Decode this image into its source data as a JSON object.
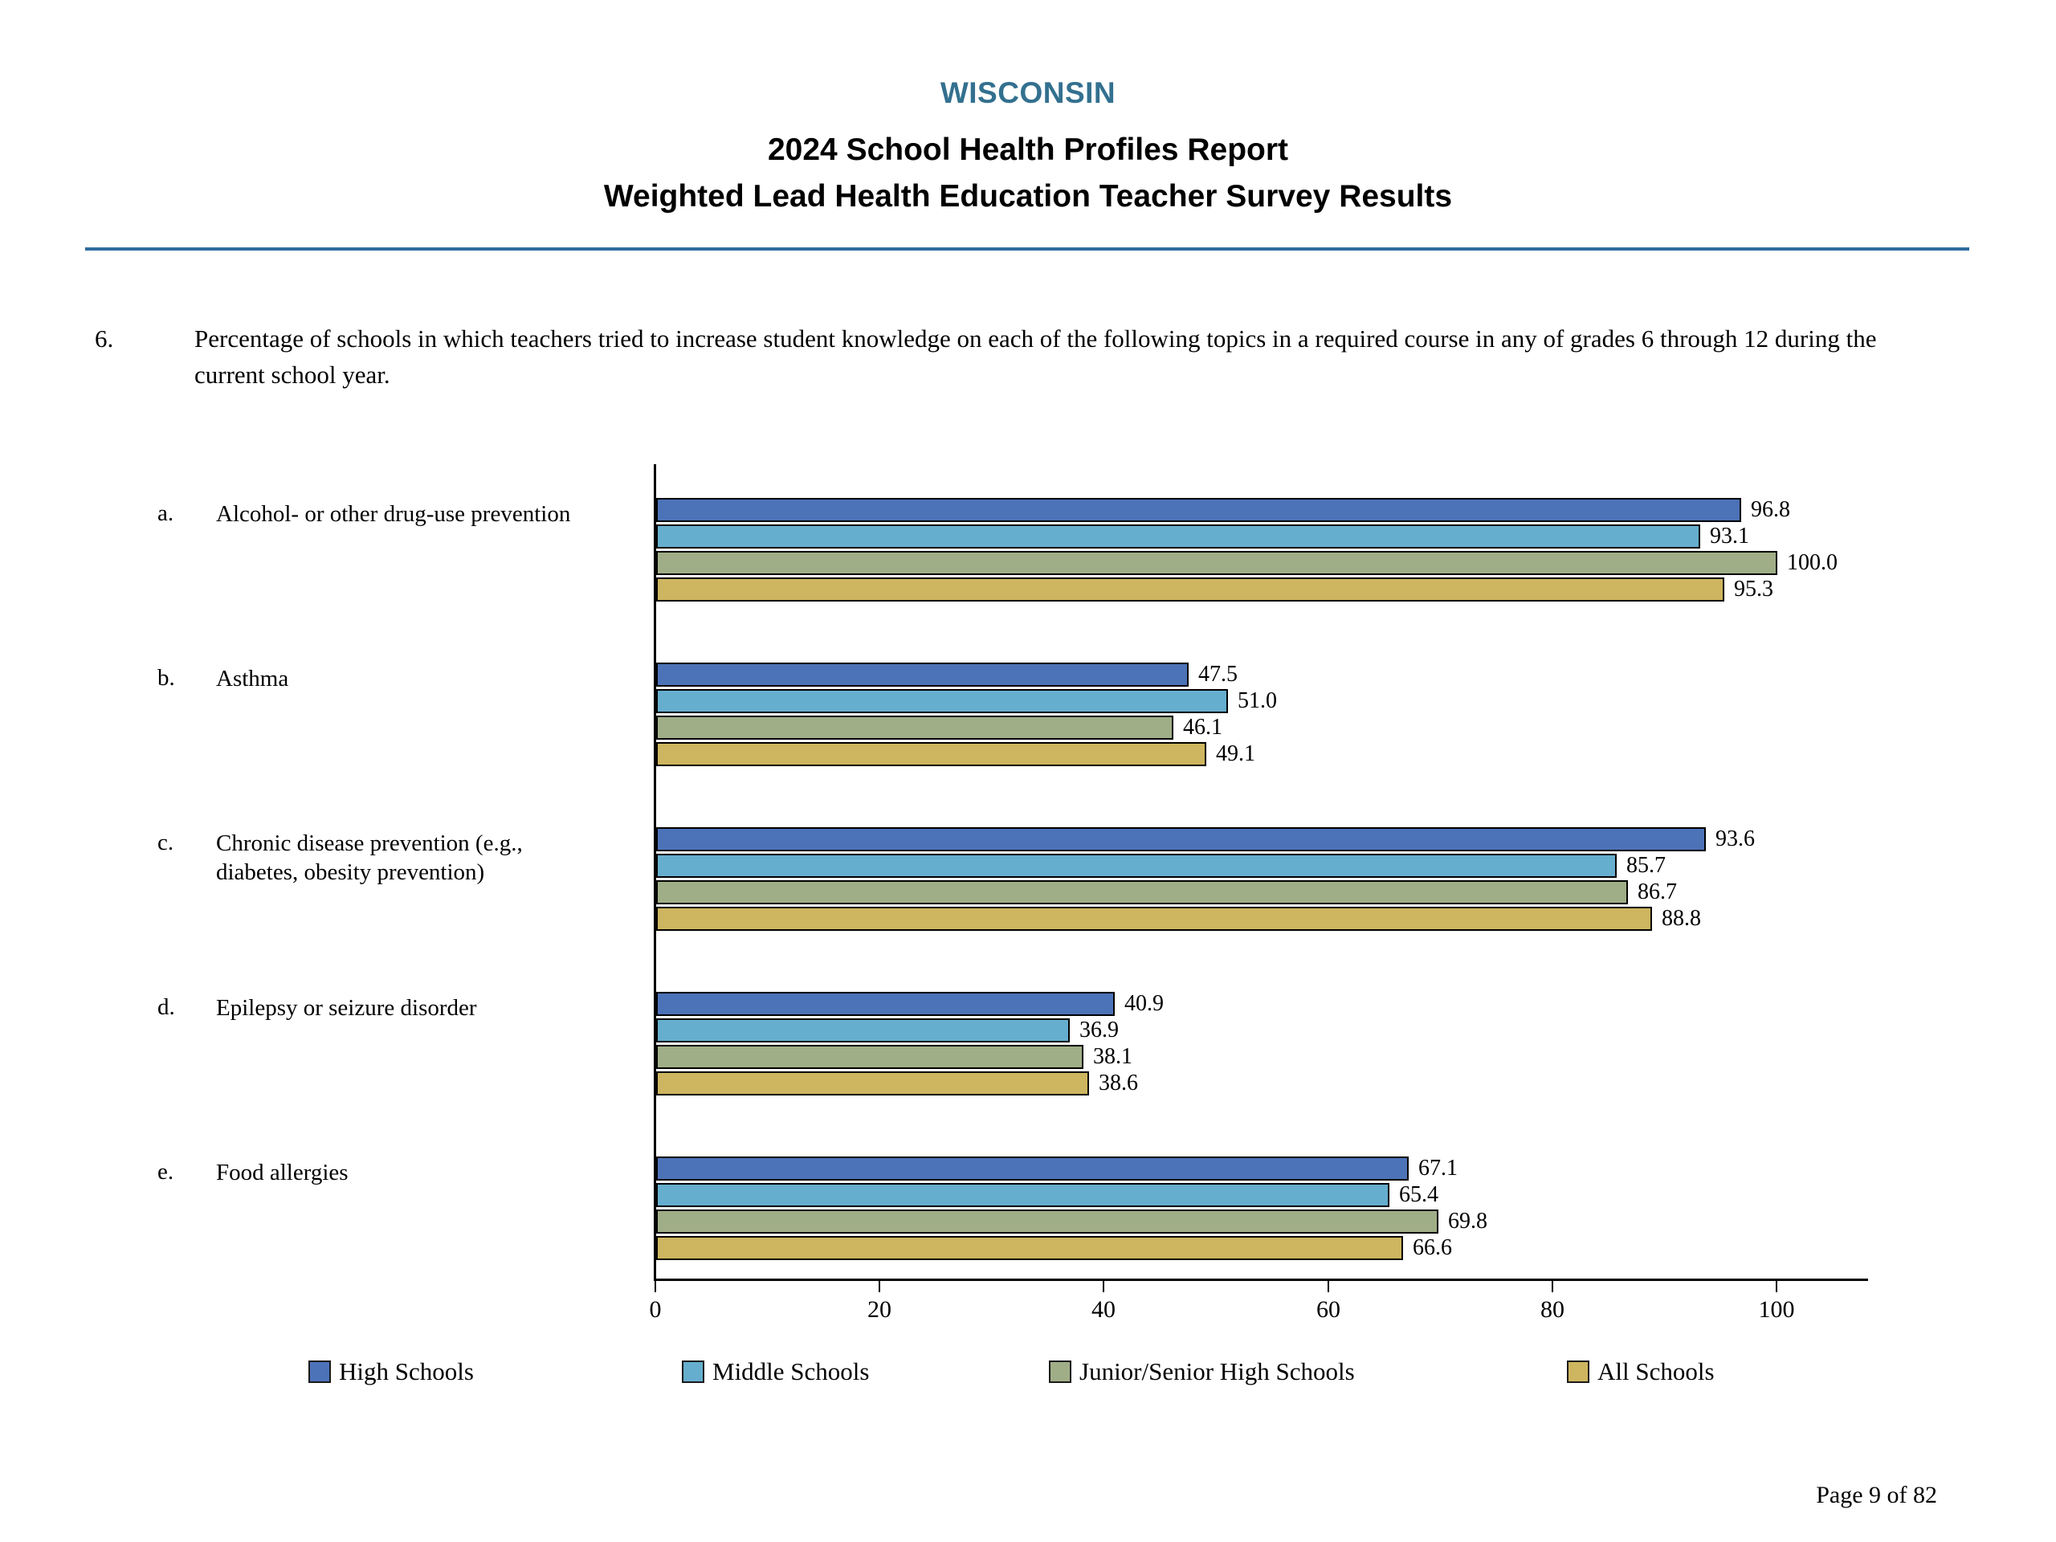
{
  "header": {
    "state": "WISCONSIN",
    "title": "2024 School Health Profiles Report",
    "subtitle": "Weighted Lead Health Education Teacher Survey Results"
  },
  "question": {
    "number": "6.",
    "text": "Percentage of schools in which teachers tried to increase student knowledge on each of the following topics in a required course in any of grades 6 through 12 during the current school year."
  },
  "chart_data": {
    "type": "bar",
    "orientation": "horizontal",
    "title": "",
    "xlabel": "",
    "ylabel": "",
    "xlim": [
      0,
      108
    ],
    "x_ticks": [
      0,
      20,
      40,
      60,
      80,
      100
    ],
    "grid": false,
    "legend_position": "bottom",
    "categories": [
      {
        "letter": "a.",
        "label": "Alcohol- or other drug-use prevention"
      },
      {
        "letter": "b.",
        "label": "Asthma"
      },
      {
        "letter": "c.",
        "label": "Chronic disease prevention (e.g., diabetes, obesity prevention)"
      },
      {
        "letter": "d.",
        "label": "Epilepsy or seizure disorder"
      },
      {
        "letter": "e.",
        "label": "Food allergies"
      }
    ],
    "series": [
      {
        "name": "High Schools",
        "color": "#4C72B8",
        "values": [
          96.8,
          47.5,
          93.6,
          40.9,
          67.1
        ]
      },
      {
        "name": "Middle Schools",
        "color": "#66AECE",
        "values": [
          93.1,
          51.0,
          85.7,
          36.9,
          65.4
        ]
      },
      {
        "name": "Junior/Senior High Schools",
        "color": "#A0AE87",
        "values": [
          100.0,
          46.1,
          86.7,
          38.1,
          69.8
        ]
      },
      {
        "name": "All Schools",
        "color": "#CEB55F",
        "values": [
          95.3,
          49.1,
          88.8,
          38.6,
          66.6
        ]
      }
    ]
  },
  "footer": {
    "page": "Page 9 of 82"
  }
}
